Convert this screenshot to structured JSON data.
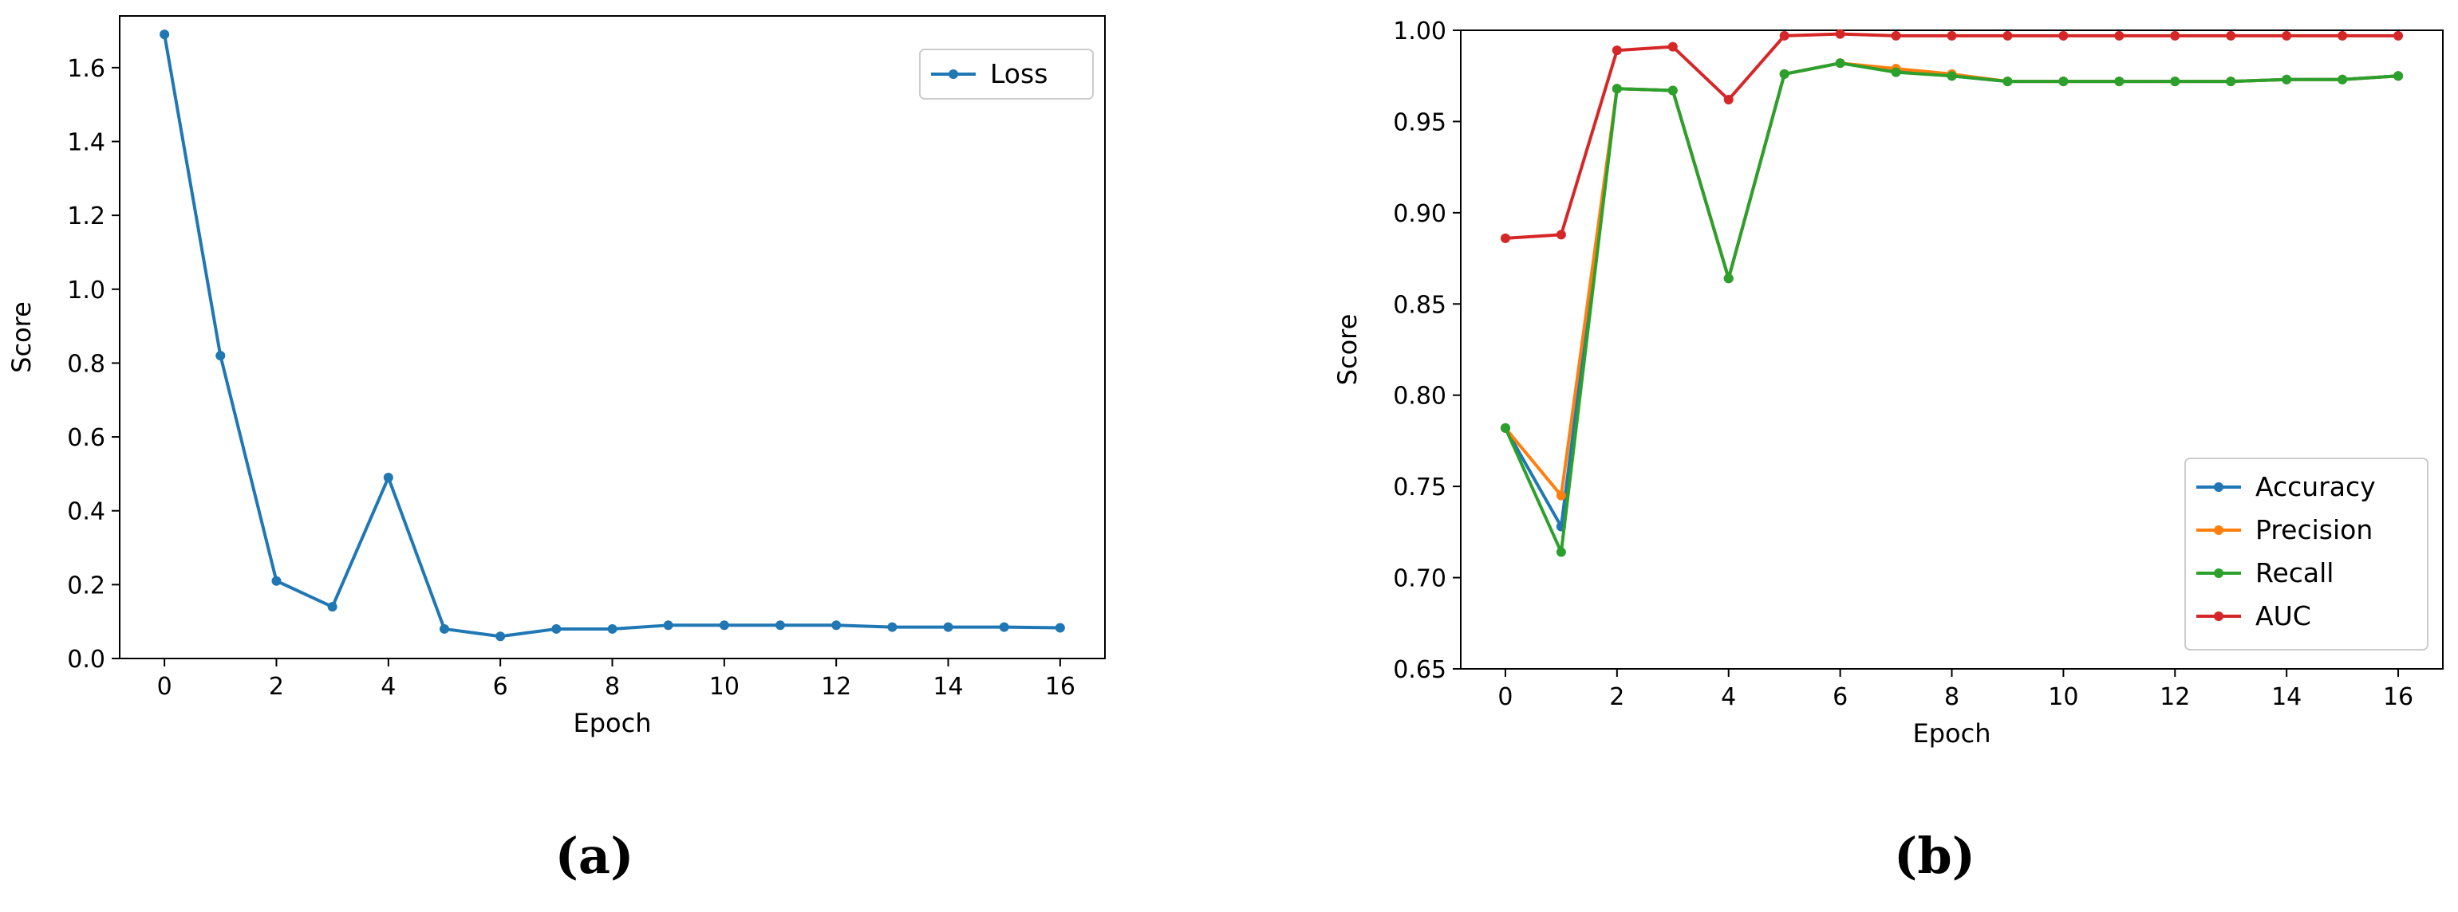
{
  "chart_data": [
    {
      "type": "line",
      "panel_label": "(a)",
      "xlabel": "Epoch",
      "ylabel": "Score",
      "xlim": [
        -0.8,
        16.8
      ],
      "ylim": [
        0.0,
        1.74
      ],
      "xticks": [
        0,
        2,
        4,
        6,
        8,
        10,
        12,
        14,
        16
      ],
      "xtick_labels": [
        "0",
        "2",
        "4",
        "6",
        "8",
        "10",
        "12",
        "14",
        "16"
      ],
      "yticks": [
        0.0,
        0.2,
        0.4,
        0.6,
        0.8,
        1.0,
        1.2,
        1.4,
        1.6
      ],
      "ytick_labels": [
        "0.0",
        "0.2",
        "0.4",
        "0.6",
        "0.8",
        "1.0",
        "1.2",
        "1.4",
        "1.6"
      ],
      "legend_position": "upper right",
      "grid": false,
      "x": [
        0,
        1,
        2,
        3,
        4,
        5,
        6,
        7,
        8,
        9,
        10,
        11,
        12,
        13,
        14,
        15,
        16
      ],
      "series": [
        {
          "name": "Loss",
          "color": "#1f77b4",
          "values": [
            1.69,
            0.82,
            0.21,
            0.14,
            0.49,
            0.08,
            0.06,
            0.08,
            0.08,
            0.09,
            0.09,
            0.09,
            0.09,
            0.085,
            0.085,
            0.085,
            0.083
          ]
        }
      ]
    },
    {
      "type": "line",
      "panel_label": "(b)",
      "xlabel": "Epoch",
      "ylabel": "Score",
      "xlim": [
        -0.8,
        16.8
      ],
      "ylim": [
        0.65,
        1.0
      ],
      "xticks": [
        0,
        2,
        4,
        6,
        8,
        10,
        12,
        14,
        16
      ],
      "xtick_labels": [
        "0",
        "2",
        "4",
        "6",
        "8",
        "10",
        "12",
        "14",
        "16"
      ],
      "yticks": [
        0.65,
        0.7,
        0.75,
        0.8,
        0.85,
        0.9,
        0.95,
        1.0
      ],
      "ytick_labels": [
        "0.65",
        "0.70",
        "0.75",
        "0.80",
        "0.85",
        "0.90",
        "0.95",
        "1.00"
      ],
      "legend_position": "lower right",
      "grid": false,
      "x": [
        0,
        1,
        2,
        3,
        4,
        5,
        6,
        7,
        8,
        9,
        10,
        11,
        12,
        13,
        14,
        15,
        16
      ],
      "series": [
        {
          "name": "Accuracy",
          "color": "#1f77b4",
          "values": [
            0.782,
            0.728,
            0.968,
            0.967,
            0.864,
            0.976,
            0.982,
            0.978,
            0.975,
            0.972,
            0.972,
            0.972,
            0.972,
            0.972,
            0.973,
            0.973,
            0.975
          ]
        },
        {
          "name": "Precision",
          "color": "#ff7f0e",
          "values": [
            0.782,
            0.745,
            0.968,
            0.967,
            0.864,
            0.976,
            0.982,
            0.979,
            0.976,
            0.972,
            0.972,
            0.972,
            0.972,
            0.972,
            0.973,
            0.973,
            0.975
          ]
        },
        {
          "name": "Recall",
          "color": "#2ca02c",
          "values": [
            0.782,
            0.714,
            0.968,
            0.967,
            0.864,
            0.976,
            0.982,
            0.977,
            0.975,
            0.972,
            0.972,
            0.972,
            0.972,
            0.972,
            0.973,
            0.973,
            0.975
          ]
        },
        {
          "name": "AUC",
          "color": "#d62728",
          "values": [
            0.886,
            0.888,
            0.989,
            0.991,
            0.962,
            0.997,
            0.998,
            0.997,
            0.997,
            0.997,
            0.997,
            0.997,
            0.997,
            0.997,
            0.997,
            0.997,
            0.997
          ]
        }
      ]
    }
  ]
}
